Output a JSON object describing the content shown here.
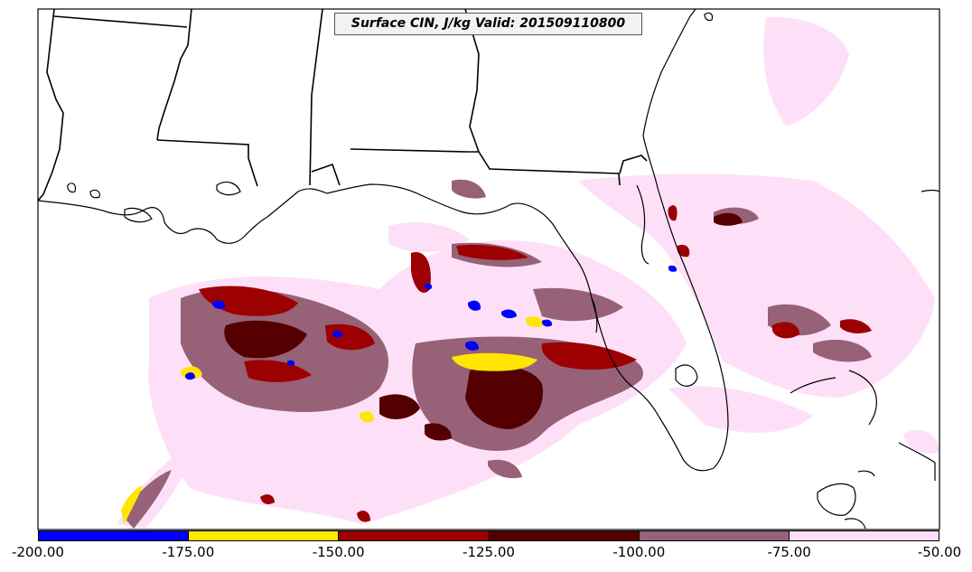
{
  "map": {
    "title": "Surface CIN, J/kg Valid: 201509110800",
    "field_colors": {
      "cin_m50_m75": "#fde0f7",
      "cin_m75_m100": "#976178",
      "cin_m100_m125": "#540000",
      "cin_m125_m150": "#9c0000",
      "cin_m150_m175": "#ffe600",
      "cin_m175_m200": "#0000ff"
    },
    "coast_color": "#000000"
  },
  "colorbar": {
    "segments": [
      {
        "color": "#0000ff"
      },
      {
        "color": "#ffe600"
      },
      {
        "color": "#9c0000"
      },
      {
        "color": "#540000"
      },
      {
        "color": "#976178"
      },
      {
        "color": "#fde0f7"
      }
    ],
    "labels": [
      "-200.00",
      "-175.00",
      "-150.00",
      "-125.00",
      "-100.00",
      "-75.00",
      "-50.00"
    ]
  }
}
